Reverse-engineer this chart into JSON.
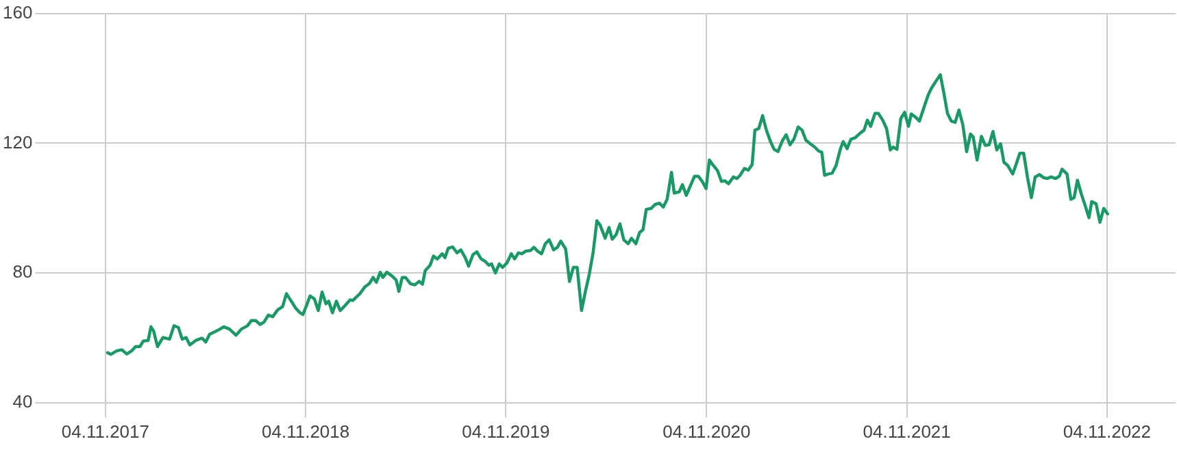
{
  "chart_data": {
    "type": "line",
    "color": "#1a9966",
    "marker": "none",
    "grid": true,
    "xlim": [
      "2017-07-04",
      "2023-03-09"
    ],
    "ylim": [
      40,
      160
    ],
    "yticks": [
      40,
      80,
      120,
      160
    ],
    "xticks": [
      {
        "value": "2017-11-04",
        "label": "04.11.2017"
      },
      {
        "value": "2018-11-04",
        "label": "04.11.2018"
      },
      {
        "value": "2019-11-04",
        "label": "04.11.2019"
      },
      {
        "value": "2020-11-04",
        "label": "04.11.2020"
      },
      {
        "value": "2021-11-04",
        "label": "04.11.2021"
      },
      {
        "value": "2022-11-04",
        "label": "04.11.2022"
      }
    ],
    "x": [
      "2017-11-08",
      "2017-11-14",
      "2017-11-25",
      "2017-12-04",
      "2017-12-13",
      "2017-12-22",
      "2017-12-29",
      "2018-01-06",
      "2018-01-12",
      "2018-01-21",
      "2018-01-26",
      "2018-01-31",
      "2018-02-07",
      "2018-02-17",
      "2018-03-01",
      "2018-03-09",
      "2018-03-17",
      "2018-03-24",
      "2018-03-31",
      "2018-04-07",
      "2018-04-18",
      "2018-04-29",
      "2018-05-06",
      "2018-05-13",
      "2018-05-24",
      "2018-06-01",
      "2018-06-08",
      "2018-06-18",
      "2018-06-30",
      "2018-07-10",
      "2018-07-21",
      "2018-07-28",
      "2018-08-05",
      "2018-08-13",
      "2018-08-20",
      "2018-08-28",
      "2018-09-05",
      "2018-09-14",
      "2018-09-23",
      "2018-09-30",
      "2018-10-08",
      "2018-10-17",
      "2018-10-25",
      "2018-10-30",
      "2018-11-06",
      "2018-11-12",
      "2018-11-20",
      "2018-11-27",
      "2018-12-04",
      "2018-12-11",
      "2018-12-16",
      "2018-12-23",
      "2018-12-30",
      "2019-01-06",
      "2019-01-14",
      "2019-01-24",
      "2019-01-29",
      "2019-02-11",
      "2019-02-20",
      "2019-02-28",
      "2019-03-07",
      "2019-03-13",
      "2019-03-20",
      "2019-03-25",
      "2019-04-01",
      "2019-04-11",
      "2019-04-18",
      "2019-04-23",
      "2019-04-29",
      "2019-05-05",
      "2019-05-14",
      "2019-05-22",
      "2019-05-30",
      "2019-06-05",
      "2019-06-10",
      "2019-06-19",
      "2019-06-25",
      "2019-07-02",
      "2019-07-11",
      "2019-07-16",
      "2019-07-22",
      "2019-07-30",
      "2019-08-07",
      "2019-08-14",
      "2019-08-22",
      "2019-08-28",
      "2019-09-05",
      "2019-09-12",
      "2019-09-20",
      "2019-09-27",
      "2019-10-04",
      "2019-10-09",
      "2019-10-16",
      "2019-10-23",
      "2019-10-29",
      "2019-11-06",
      "2019-11-14",
      "2019-11-20",
      "2019-11-27",
      "2019-12-03",
      "2019-12-10",
      "2019-12-19",
      "2019-12-25",
      "2020-01-01",
      "2020-01-08",
      "2020-01-15",
      "2020-01-22",
      "2020-01-30",
      "2020-02-06",
      "2020-02-12",
      "2020-02-21",
      "2020-02-28",
      "2020-03-06",
      "2020-03-13",
      "2020-03-21",
      "2020-03-28",
      "2020-04-04",
      "2020-04-11",
      "2020-04-18",
      "2020-04-24",
      "2020-05-03",
      "2020-05-10",
      "2020-05-16",
      "2020-05-23",
      "2020-05-30",
      "2020-06-06",
      "2020-06-14",
      "2020-06-20",
      "2020-06-28",
      "2020-07-05",
      "2020-07-11",
      "2020-07-17",
      "2020-07-26",
      "2020-08-02",
      "2020-08-10",
      "2020-08-17",
      "2020-08-24",
      "2020-09-01",
      "2020-09-06",
      "2020-09-15",
      "2020-09-21",
      "2020-09-28",
      "2020-10-05",
      "2020-10-13",
      "2020-10-20",
      "2020-10-27",
      "2020-11-03",
      "2020-11-09",
      "2020-11-15",
      "2020-11-24",
      "2020-12-01",
      "2020-12-07",
      "2020-12-14",
      "2020-12-23",
      "2020-12-29",
      "2021-01-04",
      "2021-01-12",
      "2021-01-19",
      "2021-01-26",
      "2021-01-31",
      "2021-02-07",
      "2021-02-14",
      "2021-02-21",
      "2021-02-28",
      "2021-03-07",
      "2021-03-14",
      "2021-03-22",
      "2021-03-29",
      "2021-04-05",
      "2021-04-12",
      "2021-04-20",
      "2021-04-27",
      "2021-05-04",
      "2021-05-12",
      "2021-05-20",
      "2021-05-27",
      "2021-06-02",
      "2021-06-07",
      "2021-06-14",
      "2021-06-21",
      "2021-06-28",
      "2021-07-06",
      "2021-07-11",
      "2021-07-18",
      "2021-07-25",
      "2021-08-02",
      "2021-08-11",
      "2021-08-18",
      "2021-08-24",
      "2021-08-30",
      "2021-09-07",
      "2021-09-13",
      "2021-09-21",
      "2021-09-28",
      "2021-10-05",
      "2021-10-10",
      "2021-10-17",
      "2021-10-24",
      "2021-10-31",
      "2021-11-07",
      "2021-11-12",
      "2021-11-20",
      "2021-11-27",
      "2021-12-06",
      "2021-12-13",
      "2021-12-19",
      "2021-12-29",
      "2022-01-04",
      "2022-01-10",
      "2022-01-17",
      "2022-01-24",
      "2022-01-31",
      "2022-02-07",
      "2022-02-14",
      "2022-02-21",
      "2022-02-28",
      "2022-03-05",
      "2022-03-12",
      "2022-03-20",
      "2022-03-27",
      "2022-04-03",
      "2022-04-10",
      "2022-04-17",
      "2022-04-24",
      "2022-04-30",
      "2022-05-07",
      "2022-05-16",
      "2022-05-22",
      "2022-05-29",
      "2022-06-05",
      "2022-06-12",
      "2022-06-19",
      "2022-06-26",
      "2022-07-04",
      "2022-07-11",
      "2022-07-18",
      "2022-07-25",
      "2022-08-02",
      "2022-08-09",
      "2022-08-14",
      "2022-08-23",
      "2022-08-30",
      "2022-09-05",
      "2022-09-11",
      "2022-09-18",
      "2022-09-25",
      "2022-10-02",
      "2022-10-07",
      "2022-10-15",
      "2022-10-22",
      "2022-10-29",
      "2022-11-05"
    ],
    "values": [
      55.4,
      54.9,
      56,
      56.3,
      55,
      56,
      57.3,
      57.3,
      59,
      59.2,
      63.4,
      62,
      57.3,
      60.1,
      59.6,
      63.7,
      63.2,
      59.6,
      60.1,
      57.8,
      59.2,
      59.9,
      58.7,
      61.1,
      62,
      62.7,
      63.4,
      62.7,
      60.8,
      62.7,
      63.7,
      65.3,
      65.3,
      64.1,
      64.8,
      67,
      66.5,
      68.6,
      69.6,
      73.6,
      71.5,
      69.1,
      67.7,
      67.2,
      70.1,
      72.9,
      72,
      68.4,
      74.1,
      70.5,
      71.3,
      67.7,
      71.3,
      68.4,
      69.8,
      71.7,
      71.5,
      73.6,
      75.7,
      76.7,
      78.6,
      77.1,
      80.2,
      78.6,
      80.2,
      79,
      77.8,
      74.3,
      78.6,
      78.6,
      76.7,
      76.3,
      77.4,
      76.5,
      80.7,
      82.4,
      85.2,
      84.3,
      85.9,
      84.7,
      87.6,
      88,
      86.2,
      87.1,
      84.7,
      82.1,
      85.6,
      86.5,
      84.3,
      83.6,
      82.4,
      82.8,
      80,
      82.8,
      81.7,
      83.1,
      85.9,
      84.3,
      86.2,
      85.9,
      86.7,
      86.9,
      87.9,
      86.7,
      85.9,
      89,
      90.2,
      87.1,
      87.9,
      89.8,
      87.4,
      77.4,
      81.7,
      81.7,
      68.4,
      74.3,
      79.5,
      86.2,
      96.1,
      94.7,
      90.7,
      94,
      90.4,
      91.8,
      95.1,
      90.2,
      89,
      90.7,
      89,
      92.5,
      93.3,
      99.6,
      99.9,
      101.1,
      101.5,
      100.3,
      102.7,
      111,
      104.6,
      105,
      107.2,
      103.9,
      106.7,
      109.8,
      109.8,
      108.2,
      106,
      114.8,
      113.4,
      111.5,
      108.2,
      108.4,
      107.5,
      109.6,
      109.1,
      110.1,
      112.2,
      111.7,
      113.4,
      124,
      124.5,
      128.5,
      124,
      120.7,
      118.1,
      117.4,
      120.7,
      122.6,
      119.5,
      121.2,
      125,
      124,
      120.9,
      119.8,
      118.8,
      117.6,
      117.2,
      110.1,
      110.5,
      110.8,
      113.1,
      118.3,
      120.5,
      118.3,
      121.2,
      121.7,
      123.1,
      124,
      127.1,
      125.2,
      129.2,
      129.2,
      127.1,
      124.5,
      117.9,
      118.8,
      118.1,
      127.6,
      129.5,
      125.2,
      129,
      128,
      126.8,
      131.4,
      134.9,
      137,
      139.6,
      141.1,
      135.9,
      129.2,
      126.8,
      126.4,
      130.2,
      125.7,
      117.4,
      122.8,
      121.9,
      114.8,
      122.1,
      119.3,
      119.5,
      123.6,
      117.9,
      119.8,
      114.1,
      113.1,
      110.5,
      113.4,
      116.9,
      116.9,
      109.4,
      103.2,
      109.6,
      110.3,
      109.4,
      109.1,
      109.6,
      109.1,
      109.8,
      112,
      110.5,
      102.7,
      103.2,
      108.6,
      104.4,
      100.8,
      97,
      102,
      101.3,
      95.6,
      99.9,
      98.2
    ]
  }
}
